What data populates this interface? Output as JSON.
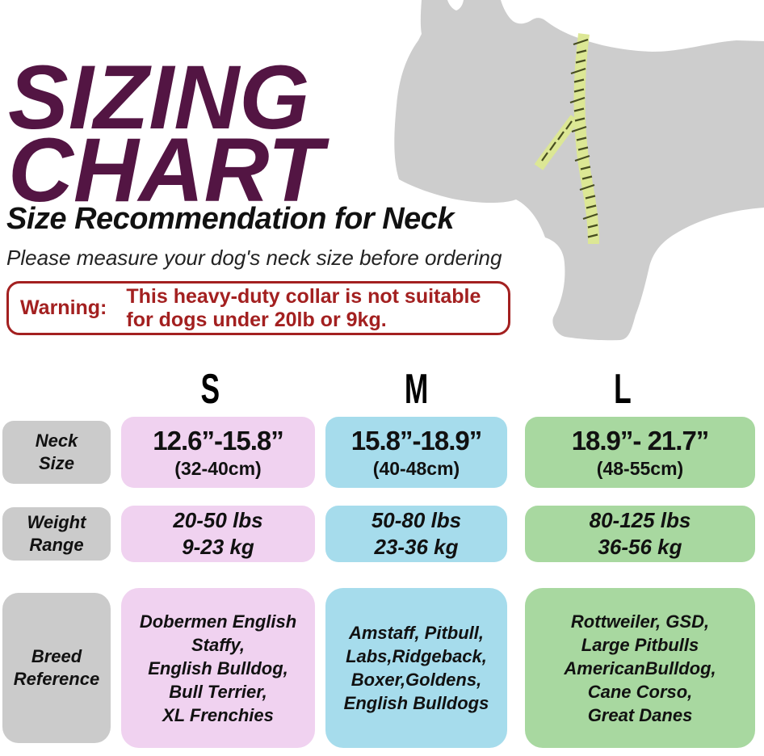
{
  "header": {
    "title_lines": [
      "SIZING",
      "CHART"
    ],
    "title_color": "#531543",
    "subtitle": "Size Recommendation for Neck",
    "note": "Please measure your dog's neck size before ordering"
  },
  "warning": {
    "label": "Warning:",
    "lines": [
      "This heavy-duty collar is not suitable",
      "for dogs under 20lb or 9kg."
    ],
    "color": "#a32020"
  },
  "graphic": {
    "name": "dog-silhouette-with-measuring-tape",
    "silhouette_color": "#cdcdcd",
    "tape_color": "#dce795",
    "tape_tick_color": "#474d20"
  },
  "table": {
    "label_bg": "#cbcbcb",
    "row_labels": [
      {
        "lines": [
          "Neck",
          "Size"
        ]
      },
      {
        "lines": [
          "Weight",
          "Range"
        ]
      },
      {
        "lines": [
          "Breed",
          "Reference"
        ]
      }
    ],
    "columns": [
      {
        "label": "S",
        "bg": "#f0d2f0",
        "neck_in": "12.6”-15.8”",
        "neck_cm": "(32-40cm)",
        "weight_lines": [
          "20-50 lbs",
          "9-23 kg"
        ],
        "breed_lines": [
          "Dobermen English",
          "Staffy,",
          "English Bulldog,",
          "Bull Terrier,",
          "XL Frenchies"
        ]
      },
      {
        "label": "M",
        "bg": "#a6dcec",
        "neck_in": "15.8”-18.9”",
        "neck_cm": "(40-48cm)",
        "weight_lines": [
          "50-80 lbs",
          "23-36 kg"
        ],
        "breed_lines": [
          "Amstaff, Pitbull,",
          "Labs,Ridgeback,",
          "Boxer,Goldens,",
          "English Bulldogs"
        ]
      },
      {
        "label": "L",
        "bg": "#a8d8a0",
        "neck_in": "18.9”- 21.7”",
        "neck_cm": "(48-55cm)",
        "weight_lines": [
          "80-125 lbs",
          "36-56 kg"
        ],
        "breed_lines": [
          "Rottweiler, GSD,",
          "Large Pitbulls",
          "AmericanBulldog,",
          "Cane Corso,",
          "Great Danes"
        ]
      }
    ]
  },
  "chart_data": {
    "type": "table",
    "title": "SIZING CHART",
    "subtitle": "Size Recommendation for Neck",
    "columns": [
      "",
      "S",
      "M",
      "L"
    ],
    "rows": [
      [
        "Neck Size",
        "12.6”-15.8” (32-40cm)",
        "15.8”-18.9” (40-48cm)",
        "18.9”- 21.7” (48-55cm)"
      ],
      [
        "Weight Range",
        "20-50 lbs / 9-23 kg",
        "50-80 lbs / 23-36 kg",
        "80-125 lbs / 36-56 kg"
      ],
      [
        "Breed Reference",
        "Dobermen English Staffy, English Bulldog, Bull Terrier, XL Frenchies",
        "Amstaff, Pitbull, Labs,Ridgeback, Boxer,Goldens, English Bulldogs",
        "Rottweiler, GSD, Large Pitbulls AmericanBulldog, Cane Corso, Great Danes"
      ]
    ]
  }
}
